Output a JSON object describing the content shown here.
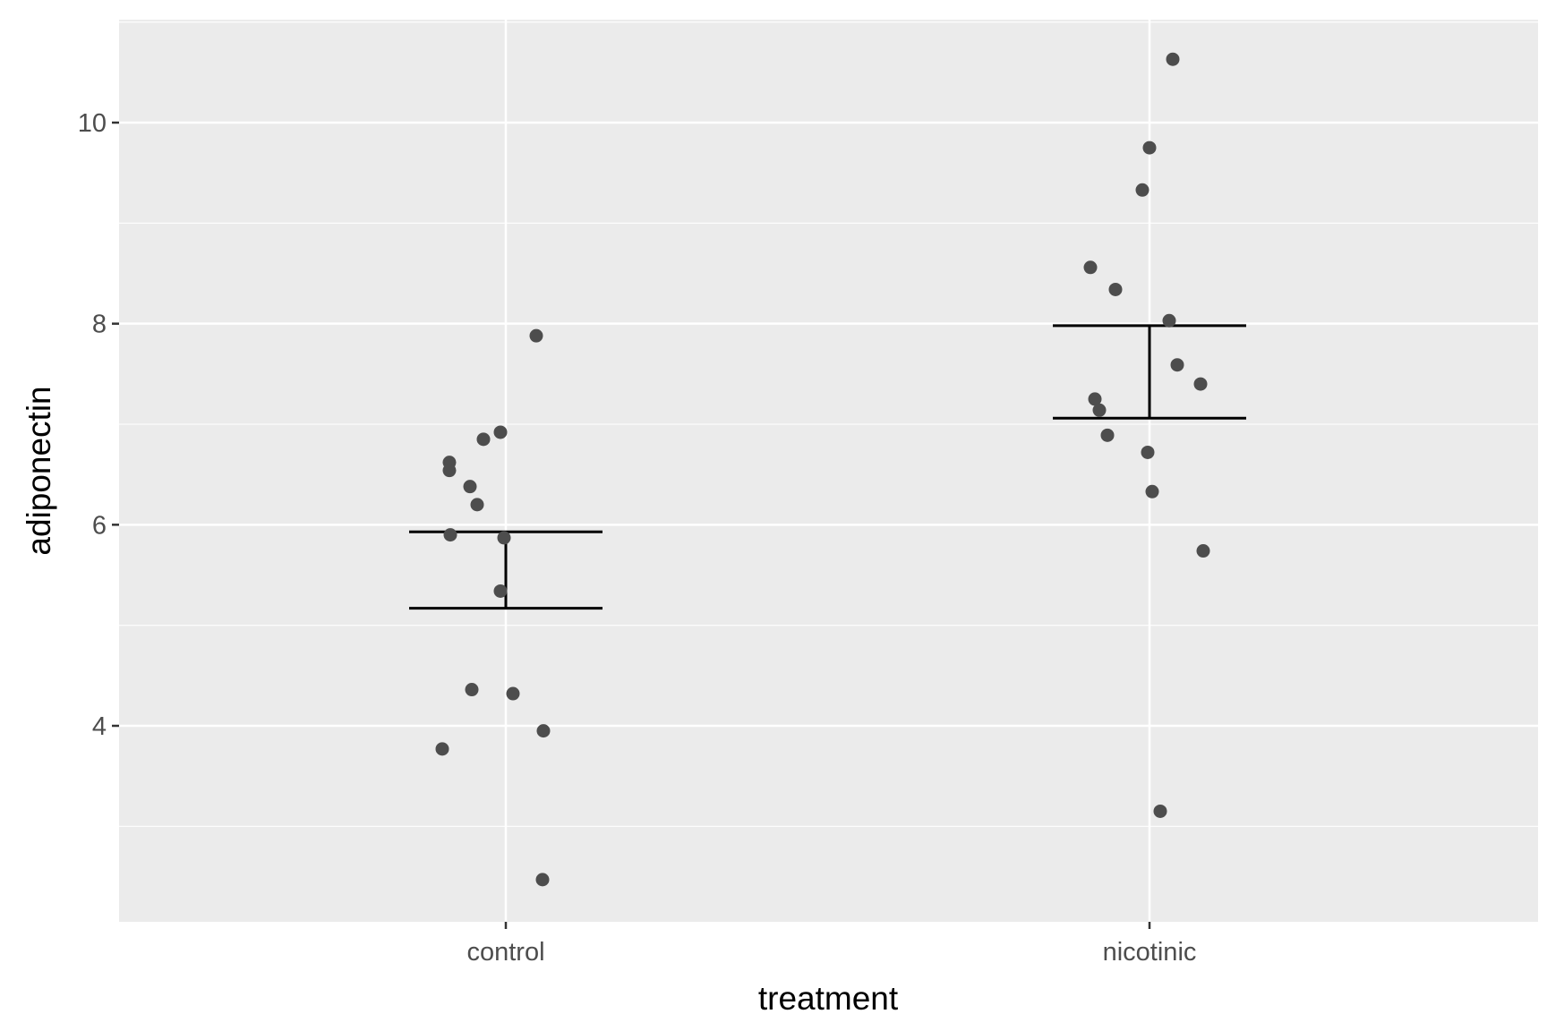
{
  "chart_data": {
    "type": "scatter",
    "xlabel": "treatment",
    "ylabel": "adiponectin",
    "categories": [
      "control",
      "nicotinic"
    ],
    "ylim": [
      2.2,
      11.2
    ],
    "y_ticks": [
      4,
      6,
      8,
      10
    ],
    "grid": true,
    "points": [
      {
        "category": "control",
        "y": 7.88
      },
      {
        "category": "control",
        "y": 6.92
      },
      {
        "category": "control",
        "y": 6.85
      },
      {
        "category": "control",
        "y": 6.62
      },
      {
        "category": "control",
        "y": 6.54
      },
      {
        "category": "control",
        "y": 6.38
      },
      {
        "category": "control",
        "y": 6.2
      },
      {
        "category": "control",
        "y": 5.9
      },
      {
        "category": "control",
        "y": 5.87
      },
      {
        "category": "control",
        "y": 5.34
      },
      {
        "category": "control",
        "y": 4.36
      },
      {
        "category": "control",
        "y": 4.32
      },
      {
        "category": "control",
        "y": 3.95
      },
      {
        "category": "control",
        "y": 3.77
      },
      {
        "category": "control",
        "y": 2.47
      },
      {
        "category": "nicotinic",
        "y": 10.63
      },
      {
        "category": "nicotinic",
        "y": 9.75
      },
      {
        "category": "nicotinic",
        "y": 9.33
      },
      {
        "category": "nicotinic",
        "y": 8.56
      },
      {
        "category": "nicotinic",
        "y": 8.34
      },
      {
        "category": "nicotinic",
        "y": 8.03
      },
      {
        "category": "nicotinic",
        "y": 7.59
      },
      {
        "category": "nicotinic",
        "y": 7.4
      },
      {
        "category": "nicotinic",
        "y": 7.25
      },
      {
        "category": "nicotinic",
        "y": 7.14
      },
      {
        "category": "nicotinic",
        "y": 6.89
      },
      {
        "category": "nicotinic",
        "y": 6.72
      },
      {
        "category": "nicotinic",
        "y": 6.33
      },
      {
        "category": "nicotinic",
        "y": 5.74
      },
      {
        "category": "nicotinic",
        "y": 3.15
      }
    ],
    "error_bars": [
      {
        "category": "control",
        "ymin": 5.17,
        "ymax": 5.93
      },
      {
        "category": "nicotinic",
        "ymin": 7.06,
        "ymax": 7.98
      }
    ],
    "colors": {
      "panel": "#ebebeb",
      "grid": "#ffffff",
      "point": "#4d4d4d",
      "error_bar": "#000000",
      "tick": "#333333"
    }
  }
}
